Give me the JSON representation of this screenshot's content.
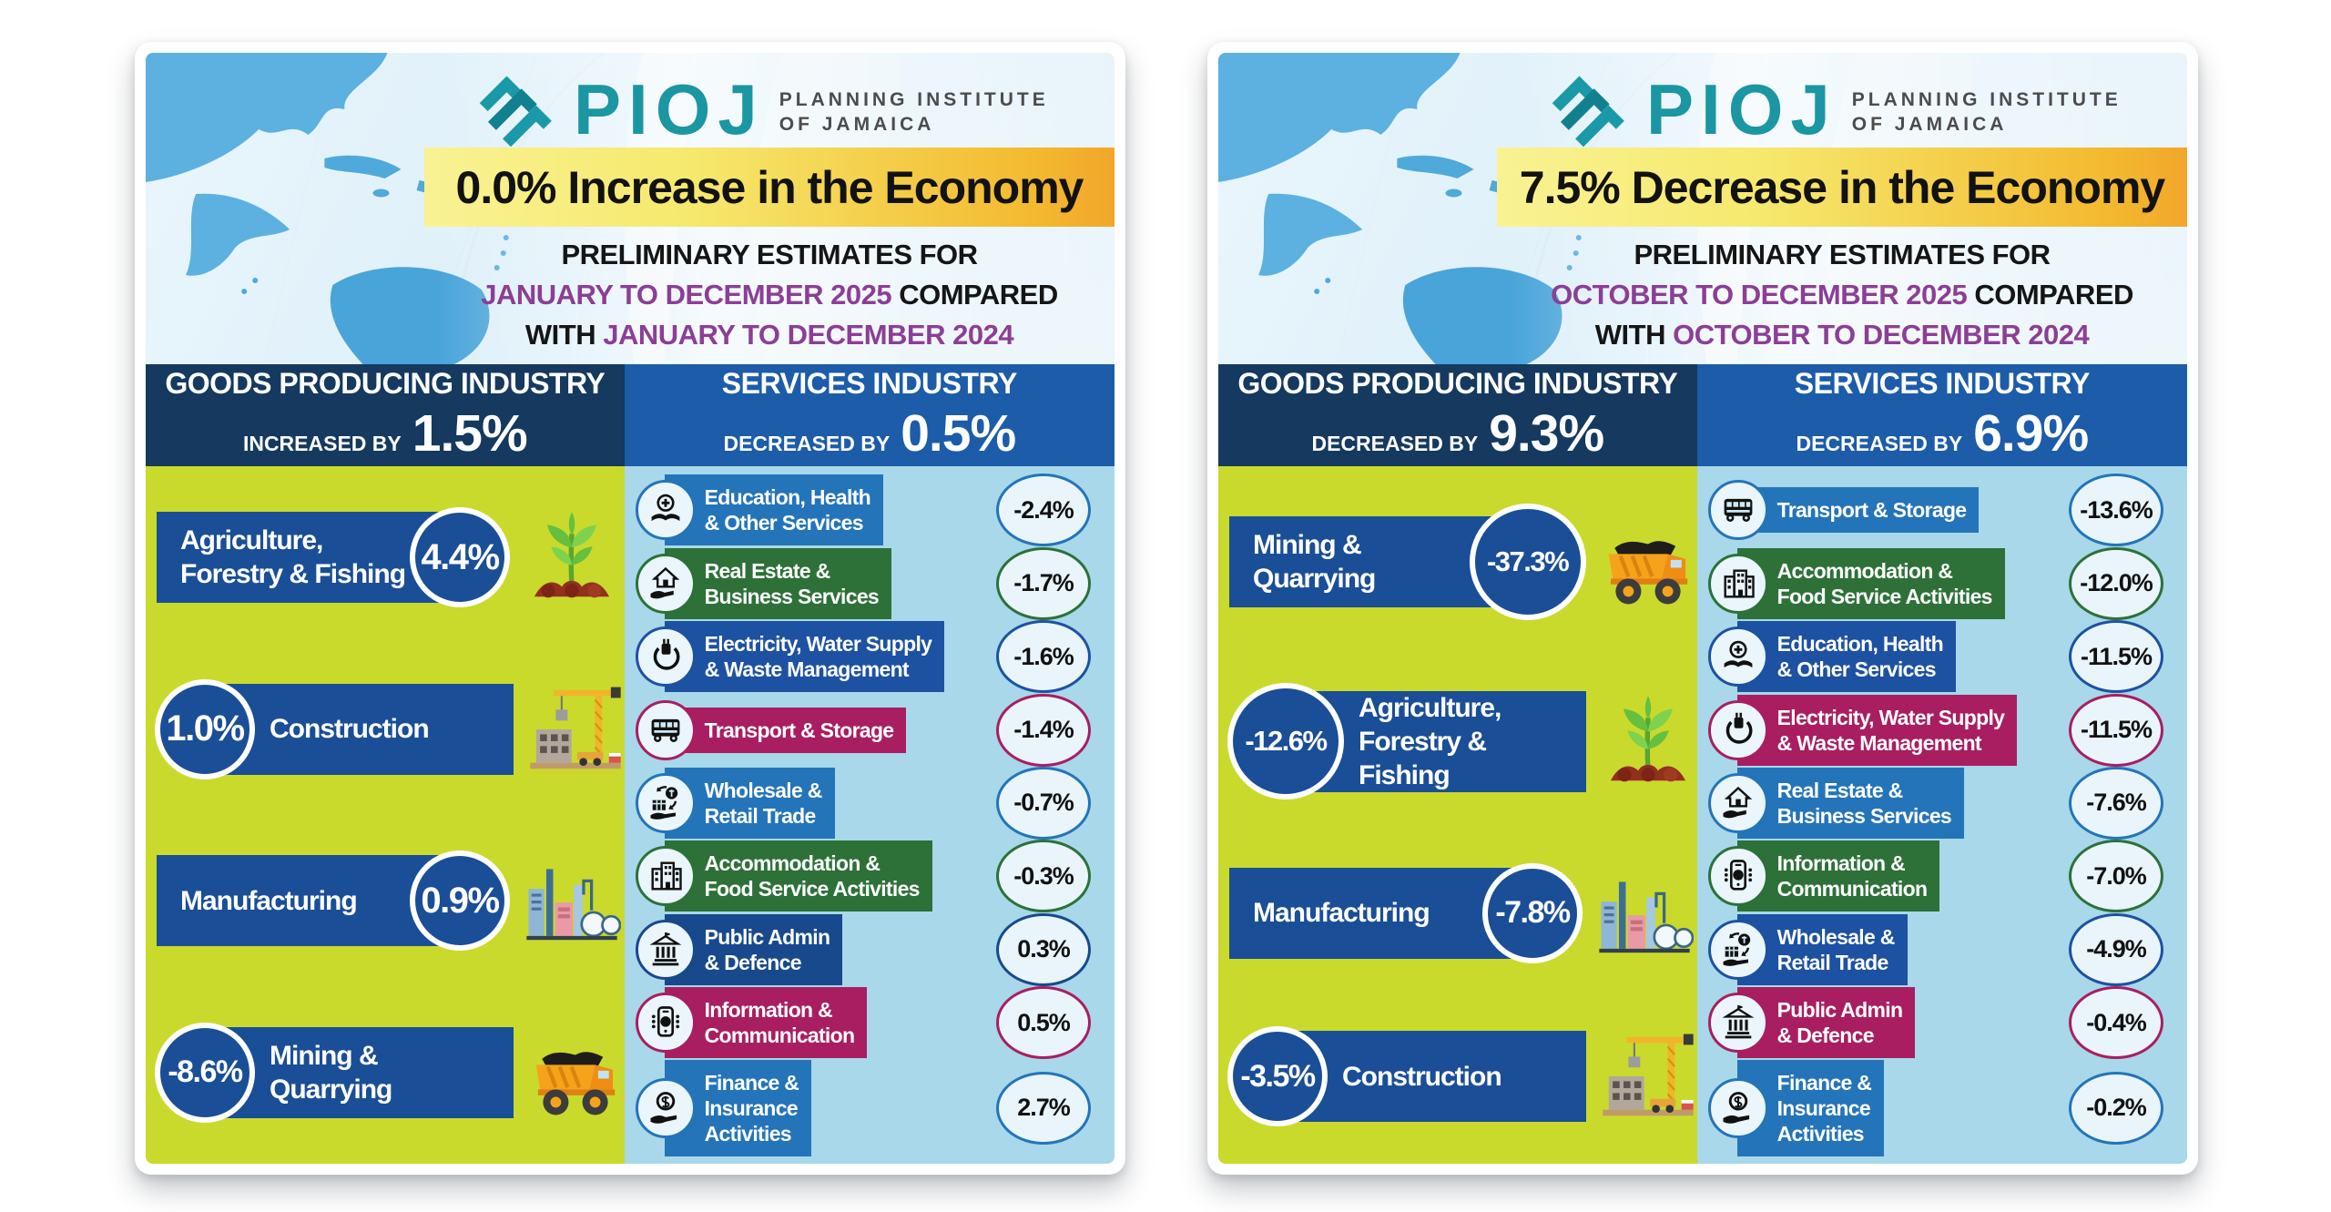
{
  "brand": {
    "name": "PIOJ",
    "org_line1": "PLANNING INSTITUTE",
    "org_line2": "OF JAMAICA"
  },
  "palette": {
    "teal": "#1b96a3",
    "banner_yellow": "#f9f293",
    "banner_orange": "#f2a62a",
    "purple": "#8c3e96",
    "goods_header_navy": "#15395f",
    "services_header_blue": "#1c5ca9",
    "goods_column_green": "#c9da2c",
    "services_column_lightblue": "#a8d8ea",
    "goods_bar_navy": "#1a4e97",
    "blue": "#2474b9",
    "green": "#2d7138",
    "darkblue": "#1d51a2",
    "magenta": "#a91e60",
    "navy": "#18498d"
  },
  "cards": [
    {
      "banner": "0.0% Increase in the Economy",
      "subtitle": {
        "line1": "PRELIMINARY ESTIMATES FOR",
        "line2_highlight": "JANUARY TO DECEMBER 2025",
        "line2_suffix": " COMPARED",
        "line3_prefix": "WITH ",
        "line3_highlight": "JANUARY TO DECEMBER 2024"
      },
      "goods_header": {
        "title": "GOODS PRODUCING INDUSTRY",
        "label": "INCREASED BY",
        "value": "1.5%"
      },
      "services_header": {
        "title": "SERVICES INDUSTRY",
        "label": "DECREASED BY",
        "value": "0.5%"
      },
      "goods": [
        {
          "name": "Agriculture,\nForestry & Fishing",
          "value": "4.4%",
          "circle": "right",
          "icon": "plant"
        },
        {
          "name": "Construction",
          "value": "1.0%",
          "circle": "left",
          "icon": "construction"
        },
        {
          "name": "Manufacturing",
          "value": "0.9%",
          "circle": "right",
          "icon": "factory"
        },
        {
          "name": "Mining &\nQuarrying",
          "value": "-8.6%",
          "circle": "left",
          "icon": "truck"
        }
      ],
      "services": [
        {
          "name": "Education, Health\n& Other Services",
          "value": "-2.4%",
          "color": "blue",
          "icon": "education"
        },
        {
          "name": "Real Estate &\nBusiness Services",
          "value": "-1.7%",
          "color": "green",
          "icon": "realestate"
        },
        {
          "name": "Electricity, Water Supply\n& Waste Management",
          "value": "-1.6%",
          "color": "darkblue",
          "icon": "electricity"
        },
        {
          "name": "Transport & Storage",
          "value": "-1.4%",
          "color": "magenta",
          "icon": "transport"
        },
        {
          "name": "Wholesale &\nRetail Trade",
          "value": "-0.7%",
          "color": "blue",
          "icon": "wholesale"
        },
        {
          "name": "Accommodation &\nFood Service Activities",
          "value": "-0.3%",
          "color": "green",
          "icon": "accommodation"
        },
        {
          "name": "Public Admin\n& Defence",
          "value": "0.3%",
          "color": "navy",
          "icon": "publicadmin"
        },
        {
          "name": "Information &\nCommunication",
          "value": "0.5%",
          "color": "magenta",
          "icon": "information"
        },
        {
          "name": "Finance &\nInsurance\nActivities",
          "value": "2.7%",
          "color": "blue",
          "icon": "finance"
        }
      ]
    },
    {
      "banner": "7.5% Decrease in the Economy",
      "subtitle": {
        "line1": "PRELIMINARY ESTIMATES FOR",
        "line2_highlight": "OCTOBER TO DECEMBER 2025",
        "line2_suffix": " COMPARED",
        "line3_prefix": "WITH ",
        "line3_highlight": "OCTOBER TO DECEMBER 2024"
      },
      "goods_header": {
        "title": "GOODS PRODUCING INDUSTRY",
        "label": "DECREASED BY",
        "value": "9.3%"
      },
      "services_header": {
        "title": "SERVICES INDUSTRY",
        "label": "DECREASED BY",
        "value": "6.9%"
      },
      "goods": [
        {
          "name": "Mining &\nQuarrying",
          "value": "-37.3%",
          "circle": "right",
          "icon": "truck"
        },
        {
          "name": "Agriculture,\nForestry & Fishing",
          "value": "-12.6%",
          "circle": "left",
          "icon": "plant"
        },
        {
          "name": "Manufacturing",
          "value": "-7.8%",
          "circle": "right",
          "icon": "factory"
        },
        {
          "name": "Construction",
          "value": "-3.5%",
          "circle": "left",
          "icon": "construction"
        }
      ],
      "services": [
        {
          "name": "Transport & Storage",
          "value": "-13.6%",
          "color": "blue",
          "icon": "transport"
        },
        {
          "name": "Accommodation &\nFood Service Activities",
          "value": "-12.0%",
          "color": "green",
          "icon": "accommodation"
        },
        {
          "name": "Education, Health\n& Other Services",
          "value": "-11.5%",
          "color": "darkblue",
          "icon": "education"
        },
        {
          "name": "Electricity, Water Supply\n& Waste Management",
          "value": "-11.5%",
          "color": "magenta",
          "icon": "electricity"
        },
        {
          "name": "Real Estate &\nBusiness Services",
          "value": "-7.6%",
          "color": "blue",
          "icon": "realestate"
        },
        {
          "name": "Information &\nCommunication",
          "value": "-7.0%",
          "color": "green",
          "icon": "information"
        },
        {
          "name": "Wholesale &\nRetail Trade",
          "value": "-4.9%",
          "color": "darkblue",
          "icon": "wholesale"
        },
        {
          "name": "Public Admin\n& Defence",
          "value": "-0.4%",
          "color": "magenta",
          "icon": "publicadmin"
        },
        {
          "name": "Finance &\nInsurance\nActivities",
          "value": "-0.2%",
          "color": "blue",
          "icon": "finance"
        }
      ]
    }
  ],
  "chart_data": [
    {
      "type": "table",
      "title": "0.0% Increase in the Economy",
      "comparison": "Preliminary estimates for January to December 2025 compared with January to December 2024",
      "groups": [
        {
          "name": "Goods Producing Industry",
          "overall_change_pct": 1.5,
          "items": [
            [
              "Agriculture, Forestry & Fishing",
              4.4
            ],
            [
              "Construction",
              1.0
            ],
            [
              "Manufacturing",
              0.9
            ],
            [
              "Mining & Quarrying",
              -8.6
            ]
          ]
        },
        {
          "name": "Services Industry",
          "overall_change_pct": -0.5,
          "items": [
            [
              "Education, Health & Other Services",
              -2.4
            ],
            [
              "Real Estate & Business Services",
              -1.7
            ],
            [
              "Electricity, Water Supply & Waste Management",
              -1.6
            ],
            [
              "Transport & Storage",
              -1.4
            ],
            [
              "Wholesale & Retail Trade",
              -0.7
            ],
            [
              "Accommodation & Food Service Activities",
              -0.3
            ],
            [
              "Public Admin & Defence",
              0.3
            ],
            [
              "Information & Communication",
              0.5
            ],
            [
              "Finance & Insurance Activities",
              2.7
            ]
          ]
        }
      ]
    },
    {
      "type": "table",
      "title": "7.5% Decrease in the Economy",
      "comparison": "Preliminary estimates for October to December 2025 compared with October to December 2024",
      "groups": [
        {
          "name": "Goods Producing Industry",
          "overall_change_pct": -9.3,
          "items": [
            [
              "Mining & Quarrying",
              -37.3
            ],
            [
              "Agriculture, Forestry & Fishing",
              -12.6
            ],
            [
              "Manufacturing",
              -7.8
            ],
            [
              "Construction",
              -3.5
            ]
          ]
        },
        {
          "name": "Services Industry",
          "overall_change_pct": -6.9,
          "items": [
            [
              "Transport & Storage",
              -13.6
            ],
            [
              "Accommodation & Food Service Activities",
              -12.0
            ],
            [
              "Education, Health & Other Services",
              -11.5
            ],
            [
              "Electricity, Water Supply & Waste Management",
              -11.5
            ],
            [
              "Real Estate & Business Services",
              -7.6
            ],
            [
              "Information & Communication",
              -7.0
            ],
            [
              "Wholesale & Retail Trade",
              -4.9
            ],
            [
              "Public Admin & Defence",
              -0.4
            ],
            [
              "Finance & Insurance Activities",
              -0.2
            ]
          ]
        }
      ]
    }
  ]
}
